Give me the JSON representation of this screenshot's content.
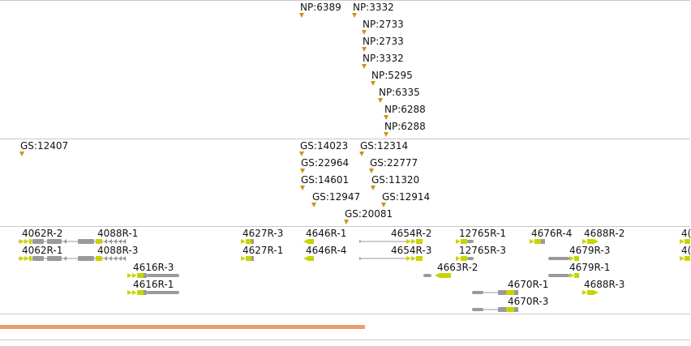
{
  "tracks": {
    "np": {
      "features": [
        {
          "label": "NP:6389"
        },
        {
          "label": "NP:3332"
        },
        {
          "label": "NP:2733"
        },
        {
          "label": "NP:2733"
        },
        {
          "label": "NP:3332"
        },
        {
          "label": "NP:5295"
        },
        {
          "label": "NP:6335"
        },
        {
          "label": "NP:6288"
        },
        {
          "label": "NP:6288"
        }
      ]
    },
    "gs": {
      "features": [
        {
          "label": "GS:12407"
        },
        {
          "label": "GS:14023"
        },
        {
          "label": "GS:12314"
        },
        {
          "label": "GS:22964"
        },
        {
          "label": "GS:22777"
        },
        {
          "label": "GS:14601"
        },
        {
          "label": "GS:11320"
        },
        {
          "label": "GS:12947"
        },
        {
          "label": "GS:12914"
        },
        {
          "label": "GS:20081"
        }
      ]
    },
    "genes": {
      "features": [
        {
          "label": "4062R-2"
        },
        {
          "label": "4088R-1"
        },
        {
          "label": "4062R-1"
        },
        {
          "label": "4088R-3"
        },
        {
          "label": "4616R-3"
        },
        {
          "label": "4616R-1"
        },
        {
          "label": "4627R-3"
        },
        {
          "label": "4627R-1"
        },
        {
          "label": "4646R-1"
        },
        {
          "label": "4646R-4"
        },
        {
          "label": "4654R-2"
        },
        {
          "label": "4654R-3"
        },
        {
          "label": "12765R-1"
        },
        {
          "label": "12765R-3"
        },
        {
          "label": "4663R-2"
        },
        {
          "label": "4676R-4"
        },
        {
          "label": "4688R-2"
        },
        {
          "label": "4679R-3"
        },
        {
          "label": "4679R-1"
        },
        {
          "label": "4670R-1"
        },
        {
          "label": "4670R-3"
        },
        {
          "label": "4688R-3"
        },
        {
          "label": "4("
        },
        {
          "label": "4("
        }
      ]
    }
  },
  "colors": {
    "marker": "#c89419",
    "gene": "#9a9a9a",
    "exon_hl": "#c8d400",
    "selection": "#e89e6c",
    "divider": "#c8c8c8"
  }
}
